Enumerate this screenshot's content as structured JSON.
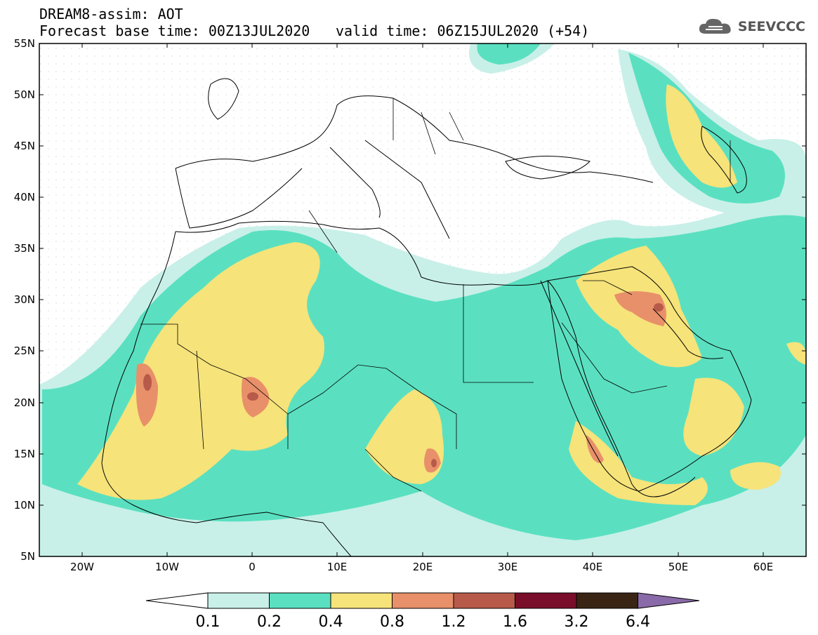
{
  "header": {
    "line1": "DREAM8-assim: AOT",
    "line2": "Forecast base time: 00Z13JUL2020",
    "valid": "valid time: 06Z15JUL2020 (+54)"
  },
  "logo": {
    "text": "SEEVCCC",
    "icon": "cloud-icon"
  },
  "map": {
    "lon_range": [
      -25,
      65
    ],
    "lat_range": [
      5,
      55
    ],
    "lat_labels": [
      "55N",
      "50N",
      "45N",
      "40N",
      "35N",
      "30N",
      "25N",
      "20N",
      "15N",
      "10N",
      "5N"
    ],
    "lon_labels": [
      "20W",
      "10W",
      "0",
      "10E",
      "20E",
      "30E",
      "40E",
      "50E",
      "60E"
    ]
  },
  "colorbar": {
    "levels": [
      "0.1",
      "0.2",
      "0.4",
      "0.8",
      "1.2",
      "1.6",
      "3.2",
      "6.4"
    ],
    "colors": [
      "#ffffff",
      "#c8f0e8",
      "#5ae0c0",
      "#f6e37a",
      "#e8906a",
      "#b85a4a",
      "#7a0e2a",
      "#3a2414",
      "#8a6aa8"
    ]
  }
}
